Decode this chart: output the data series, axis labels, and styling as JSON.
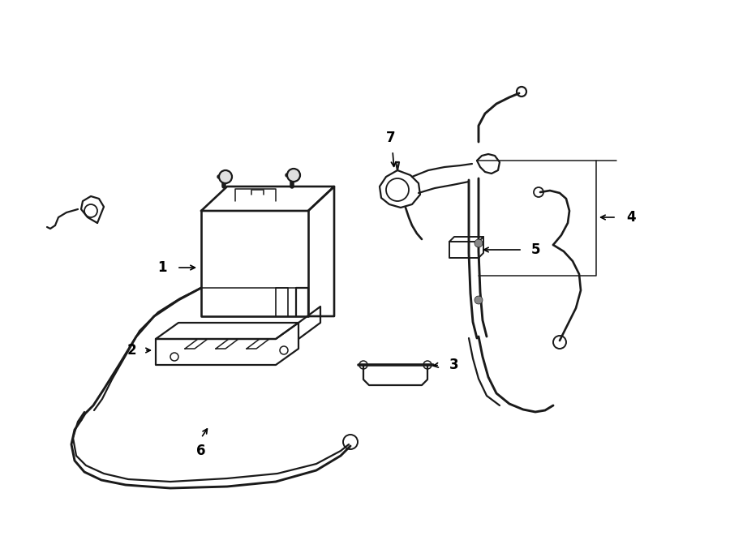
{
  "background_color": "#ffffff",
  "line_color": "#1a1a1a",
  "line_width": 1.6,
  "fig_width": 9.0,
  "fig_height": 6.61
}
